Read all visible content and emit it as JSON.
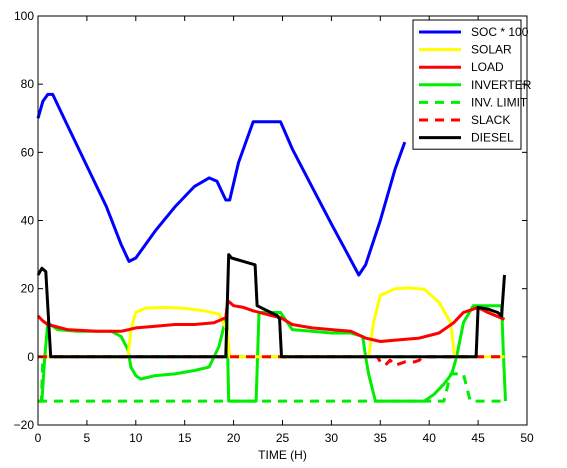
{
  "chart_data": {
    "type": "line",
    "xlabel": "TIME (H)",
    "ylabel": "",
    "xlim": [
      0,
      50
    ],
    "ylim": [
      -20,
      100
    ],
    "xticks": [
      0,
      5,
      10,
      15,
      20,
      25,
      30,
      35,
      40,
      45,
      50
    ],
    "yticks": [
      -20,
      0,
      20,
      40,
      60,
      80,
      100
    ],
    "xtick_labels": [
      "0",
      "5",
      "10",
      "15",
      "20",
      "25",
      "30",
      "35",
      "40",
      "45",
      "50"
    ],
    "ytick_labels": [
      "−20",
      "0",
      "20",
      "40",
      "60",
      "80",
      "100"
    ],
    "grid": false,
    "legend_position": "top-right",
    "series": [
      {
        "name": "SOC * 100",
        "color": "#0000ff",
        "dash": "solid",
        "x": [
          0,
          0.5,
          1,
          1.5,
          3,
          5,
          7,
          8.5,
          9.3,
          10,
          12,
          14,
          16,
          17.5,
          18.3,
          19.2,
          19.6,
          20.5,
          22,
          24,
          24.8,
          26,
          28,
          30,
          31.5,
          32.8,
          33.5,
          35,
          36.5,
          37.5
        ],
        "y": [
          70,
          75,
          77,
          77,
          68,
          56,
          44,
          33,
          28,
          29,
          37,
          44,
          50,
          52.5,
          51.5,
          46,
          46,
          57,
          69,
          69,
          69,
          61,
          50,
          39,
          31,
          24,
          27,
          40,
          55,
          63
        ]
      },
      {
        "name": "SOLAR",
        "color": "#ffff00",
        "dash": "solid",
        "x": [
          0,
          9.2,
          9.5,
          10,
          11,
          13,
          15,
          17,
          18.5,
          19.3,
          19.6,
          33.8,
          34.3,
          35,
          36.5,
          38,
          39.5,
          41,
          42.2,
          42.6,
          47.7
        ],
        "y": [
          0,
          0,
          8,
          13,
          14.3,
          14.5,
          14.2,
          13.5,
          12.5,
          8,
          0,
          0,
          10,
          18,
          20,
          20.2,
          19.8,
          16,
          10,
          0,
          0
        ]
      },
      {
        "name": "LOAD",
        "color": "#ff0000",
        "dash": "solid",
        "x": [
          0,
          0.5,
          1,
          3,
          6,
          8.5,
          9.3,
          10,
          12,
          14,
          16,
          18,
          19.2,
          19.4,
          20,
          21,
          22,
          24,
          24.8,
          26,
          28,
          30,
          32,
          33.5,
          35,
          37,
          39,
          41,
          42.5,
          43.5,
          45,
          46,
          47.7
        ],
        "y": [
          12,
          10.5,
          9.5,
          8,
          7.5,
          7.5,
          8,
          8.5,
          9,
          9.5,
          9.5,
          10,
          11.5,
          16.5,
          15,
          14.5,
          13.5,
          12,
          11.5,
          9.5,
          8.5,
          8,
          7.5,
          5.5,
          4.5,
          5,
          5.5,
          7,
          10,
          13,
          14.5,
          13,
          11
        ]
      },
      {
        "name": "INVERTER",
        "color": "#00ee00",
        "dash": "solid",
        "x": [
          0,
          0.4,
          0.7,
          1,
          2,
          4,
          6,
          7.5,
          8.5,
          9.2,
          9.5,
          10,
          10.5,
          12,
          14,
          16,
          17.5,
          18.5,
          19.1,
          19.3,
          19.5,
          22,
          22.3,
          22.6,
          24.8,
          26,
          28,
          30,
          32,
          33.2,
          33.5,
          33.8,
          34.5,
          36,
          38,
          39.5,
          40.5,
          41.5,
          42.3,
          42.8,
          43.5,
          44.5,
          45.5,
          46.5,
          47.4,
          47.6,
          47.8
        ],
        "y": [
          -13,
          -13,
          0,
          10,
          8,
          7.5,
          7.5,
          7.5,
          6,
          2,
          -3,
          -5.5,
          -6.5,
          -5.5,
          -5,
          -4,
          -3,
          3,
          10,
          13,
          -13,
          -13,
          -13,
          13,
          13,
          8,
          7.5,
          7,
          7,
          6,
          0,
          -5,
          -13,
          -13,
          -13,
          -13,
          -11,
          -8,
          -5,
          0,
          10,
          15,
          15,
          15,
          15,
          0,
          -13
        ]
      },
      {
        "name": "INV. LIMIT",
        "color": "#00ee00",
        "dash": "dashed",
        "x": [
          0,
          0.35,
          0.5,
          47.7
        ],
        "y": [
          -13,
          -13,
          0,
          0
        ],
        "extra_segments": [
          {
            "x": [
              0,
              41.5,
              42.2,
              43.5,
              44.2,
              47.7
            ],
            "y": [
              -13,
              -13,
              -5,
              -5,
              -13,
              -13
            ]
          }
        ]
      },
      {
        "name": "SLACK",
        "color": "#ff0000",
        "dash": "dashed",
        "x": [
          0,
          34.7,
          35,
          35.5,
          36,
          36.5,
          37.5,
          38.5,
          39,
          39.3,
          47.7
        ],
        "y": [
          0,
          0,
          -1.5,
          -2.5,
          -1,
          -2.5,
          -1.5,
          -1.5,
          -1,
          0,
          0
        ]
      },
      {
        "name": "DIESEL",
        "color": "#000000",
        "dash": "solid",
        "x": [
          0,
          0.4,
          0.8,
          1.3,
          1.5,
          19.2,
          19.5,
          19.8,
          21,
          22.2,
          22.4,
          24.5,
          24.7,
          24.9,
          44.8,
          45,
          46,
          47,
          47.4,
          47.7
        ],
        "y": [
          24,
          26,
          25,
          0,
          0,
          0,
          30,
          29,
          28,
          27,
          15,
          12,
          11,
          0,
          0,
          14.5,
          14,
          13,
          12,
          24
        ]
      }
    ]
  }
}
